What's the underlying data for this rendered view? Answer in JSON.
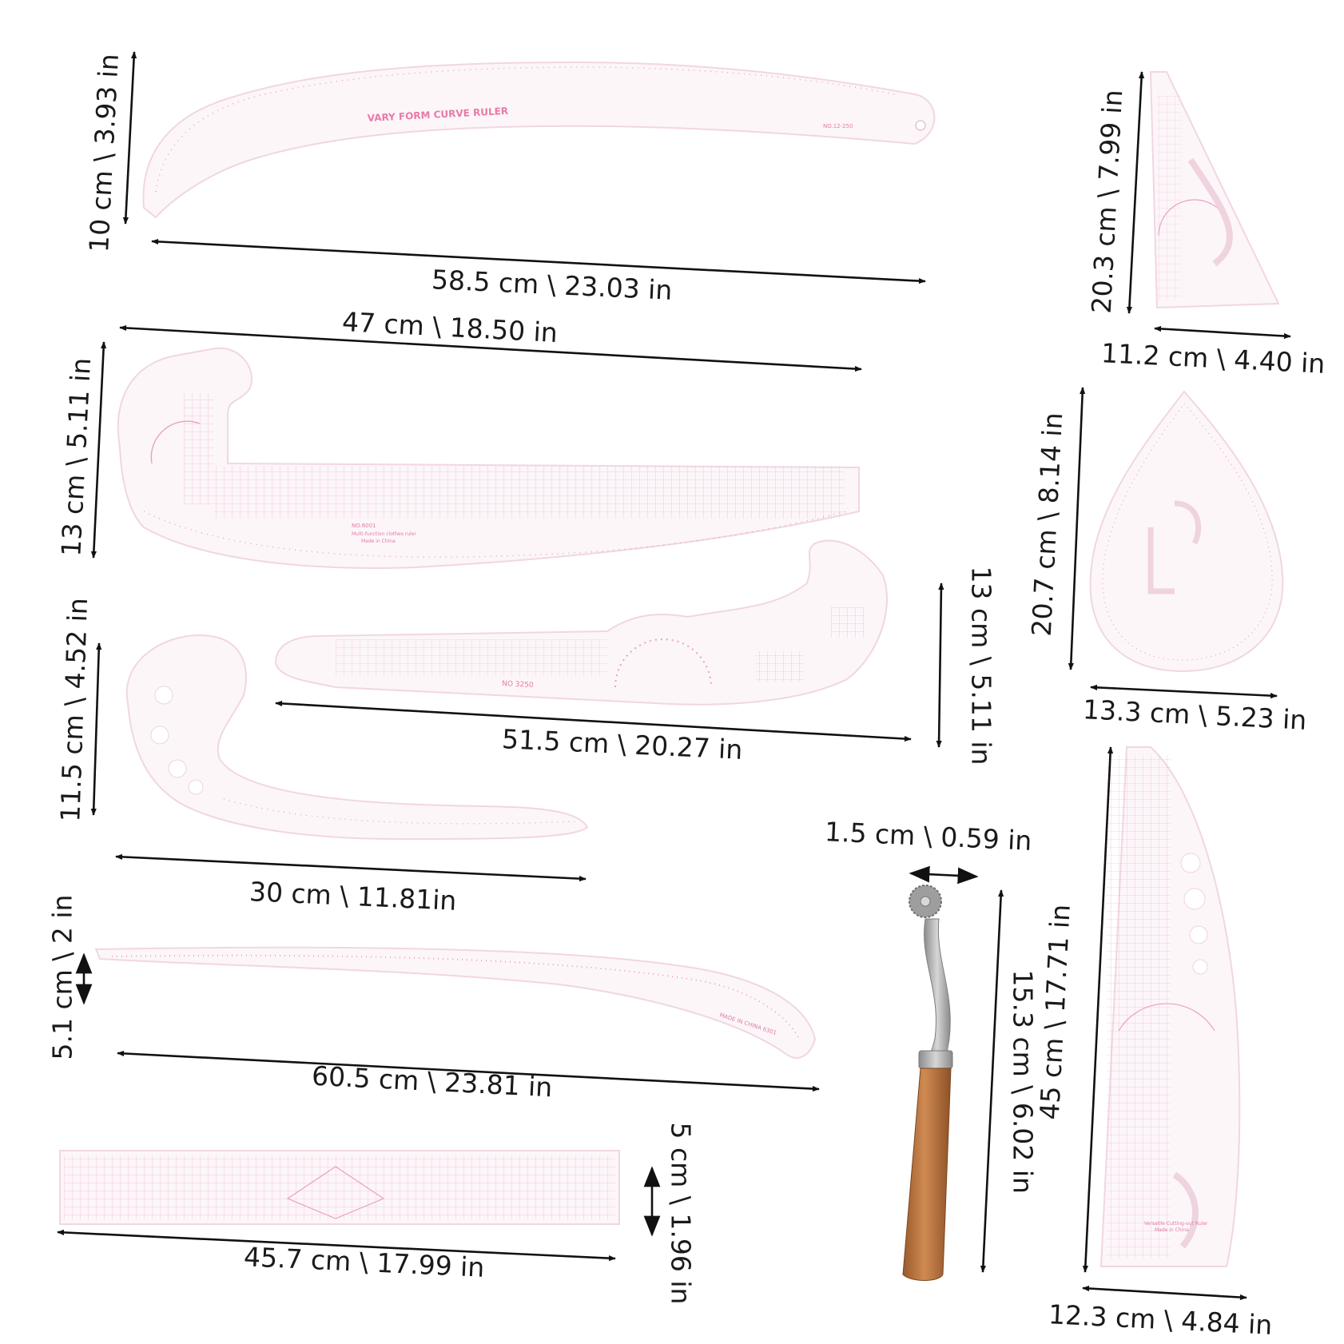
{
  "colors": {
    "ruler_fill": "#fcf6f9",
    "ruler_edge": "#f1d6e3",
    "ruler_marking": "#e87aa8",
    "arrow": "#111111",
    "wood": "#c07a45",
    "steel": "#a9a9a9"
  },
  "ruler_text": {
    "vary_form_name": "VARY FORM CURVE RULER",
    "vary_form_model": "NO.12-250",
    "french_curve_model": "NO.6001",
    "french_curve_desc": "Multi-function clothes ruler",
    "french_curve_origin": "Made in China",
    "curve_3250_model": "NO 3250",
    "hip_curve_origin": "MADE IN CHINA 6301",
    "pattern_ruler_desc": "Versatile Cutting-out Ruler",
    "pattern_ruler_origin": "Made in China"
  },
  "dimensions": {
    "vary_form_length": "58.5 cm \\ 23.03 in",
    "vary_form_height": "10 cm \\ 3.93 in",
    "french_curve_length": "47 cm \\ 18.50 in",
    "french_curve_height": "13 cm \\ 5.11 in",
    "curve_3250_length": "51.5 cm \\ 20.27 in",
    "curve_3250_height": "13 cm \\ 5.11 in",
    "hook_curve_length": "30 cm \\ 11.81in",
    "hook_curve_height": "11.5 cm \\ 4.52 in",
    "hip_curve_length": "60.5 cm \\ 23.81 in",
    "hip_curve_height": "5.1 cm \\ 2 in",
    "straight_ruler_length": "45.7 cm \\ 17.99 in",
    "straight_ruler_height": "5 cm \\ 1.96 in",
    "triangle_height": "20.3 cm \\ 7.99 in",
    "triangle_width": "11.2 cm \\ 4.40 in",
    "teardrop_height": "20.7 cm \\ 8.14 in",
    "teardrop_width": "13.3 cm \\ 5.23 in",
    "tracing_wheel_width": "1.5 cm \\ 0.59 in",
    "tracing_wheel_length": "15.3 cm \\ 6.02 in",
    "pattern_ruler_height": "45 cm \\ 17.71 in",
    "pattern_ruler_width": "12.3 cm \\ 4.84 in"
  }
}
